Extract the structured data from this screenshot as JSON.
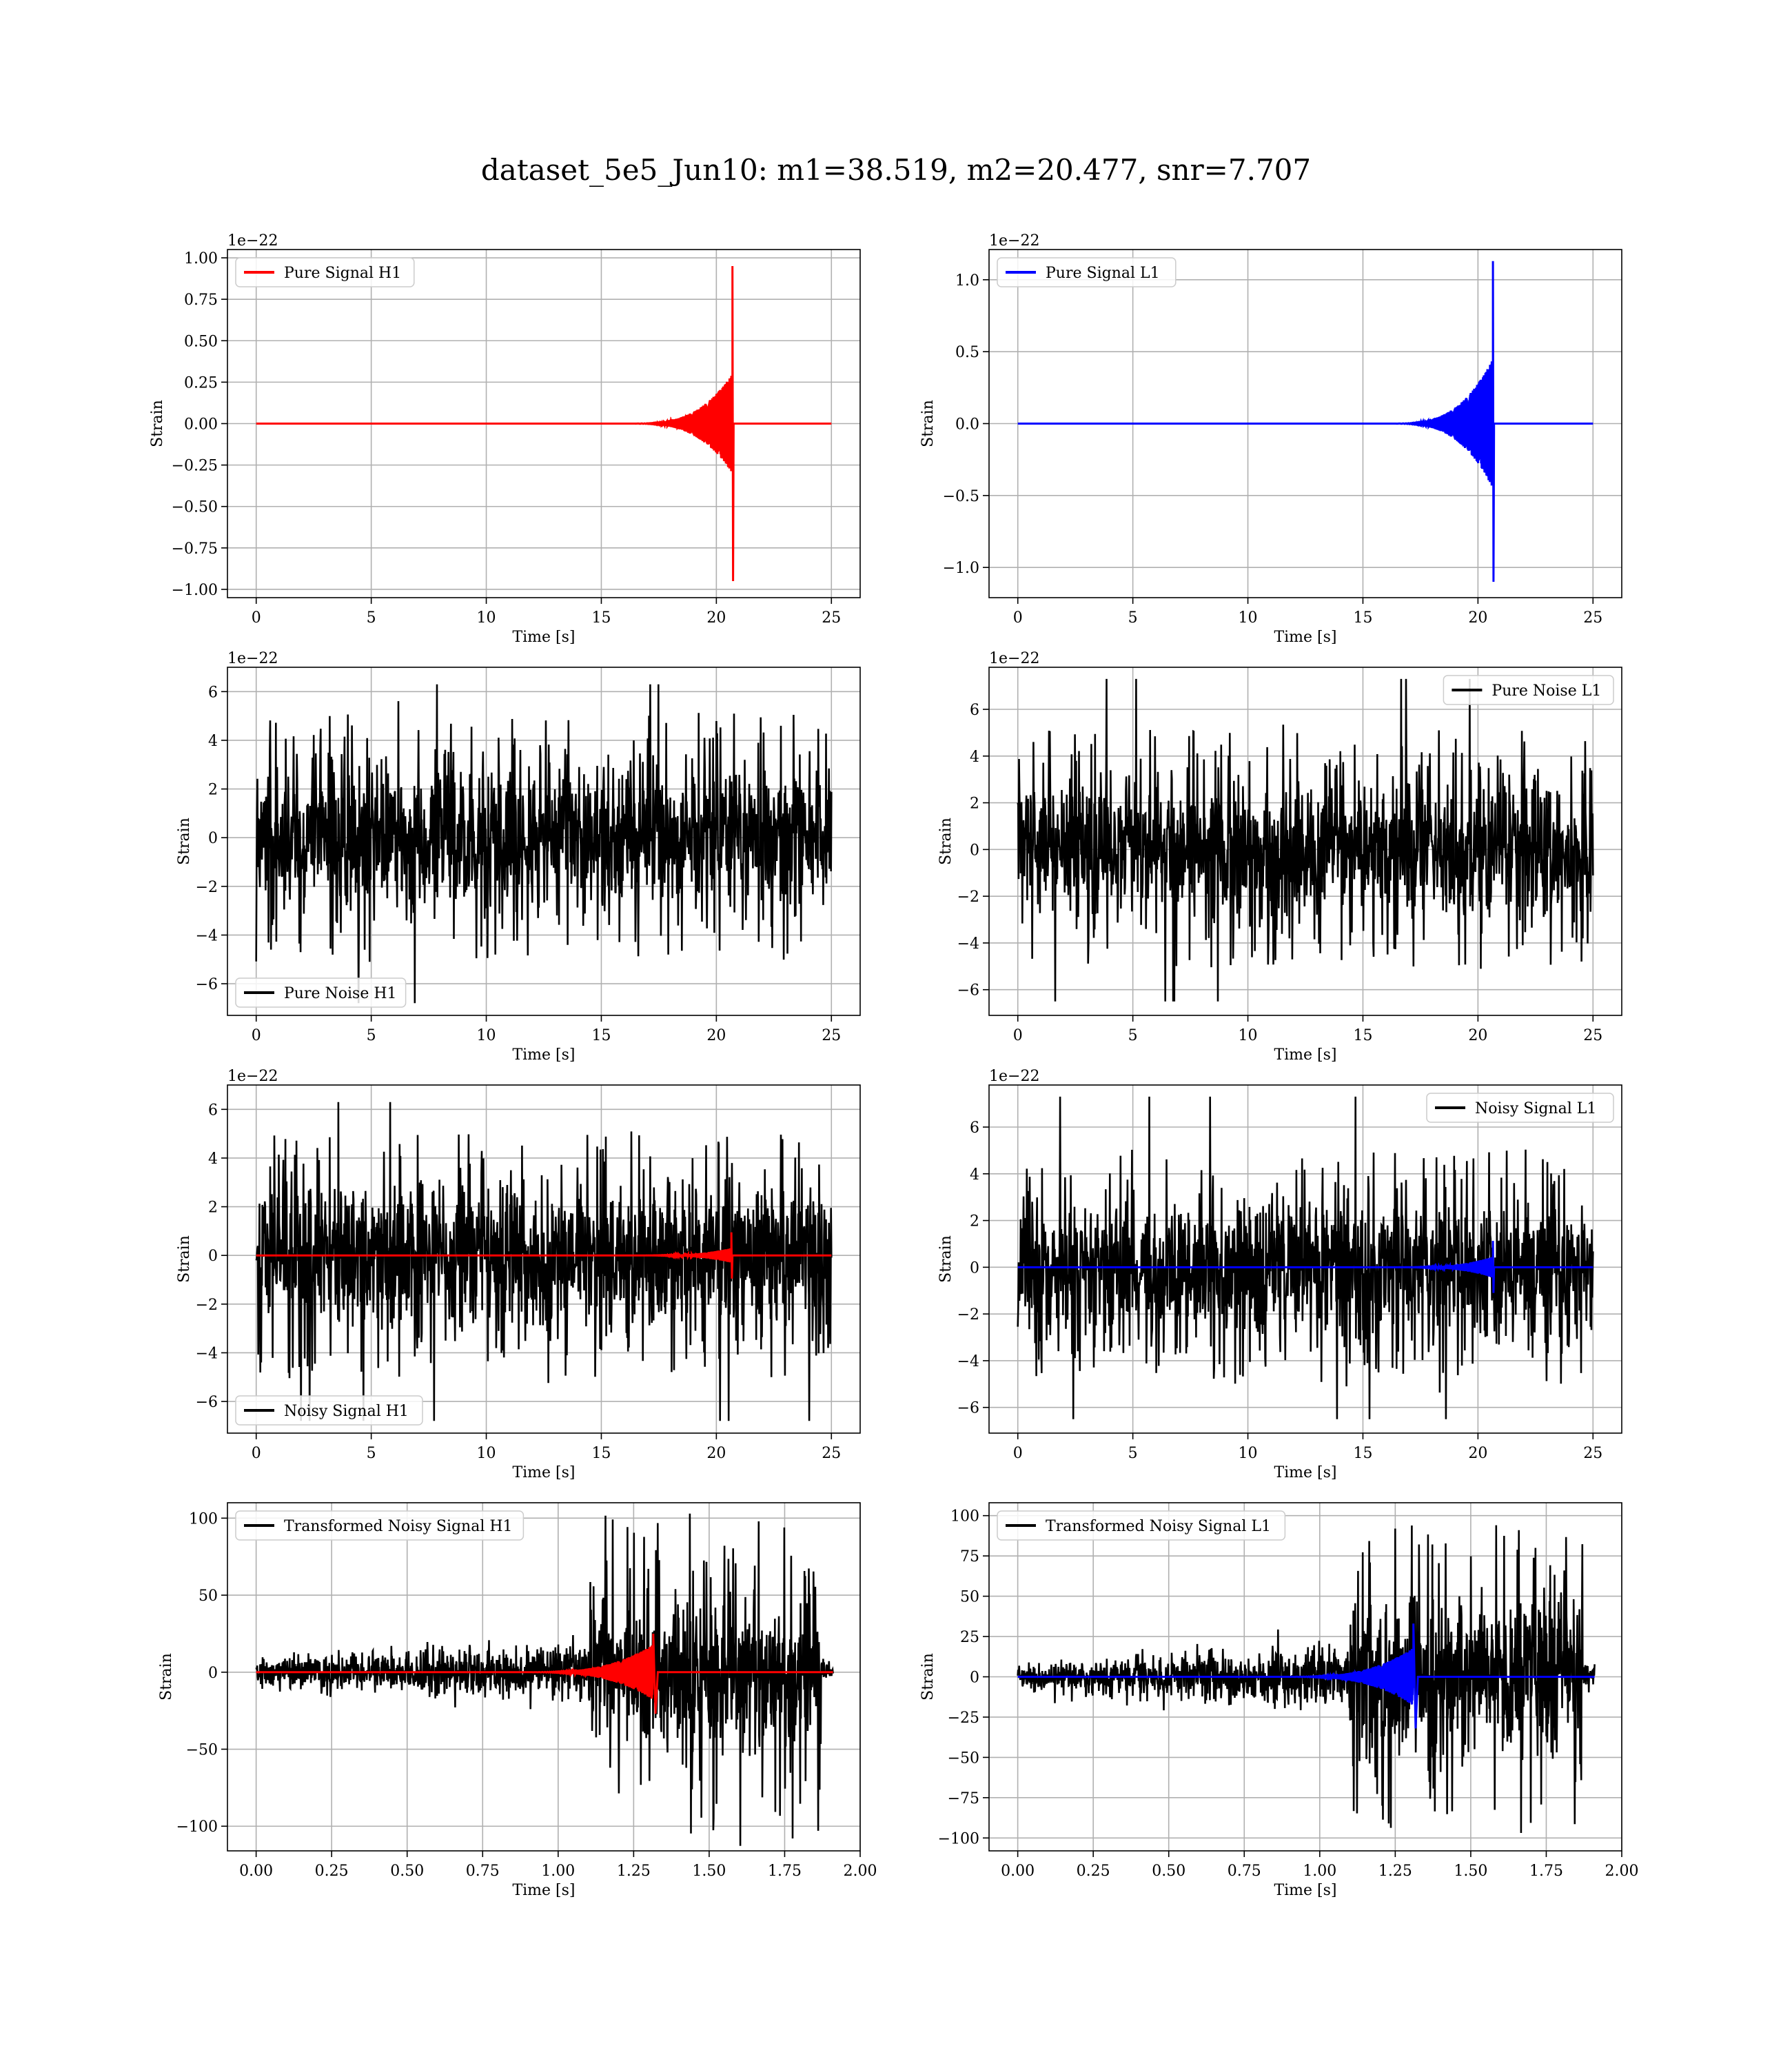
{
  "title": "dataset_5e5_Jun10: m1=38.519, m2=20.477, snr=7.707",
  "colors": {
    "h1": "#ff0000",
    "l1": "#0000ff",
    "noise": "#000000",
    "grid": "#b0b0b0"
  },
  "chart_data": [
    {
      "type": "line",
      "panel": "pure-signal-h1",
      "title": "",
      "xlabel": "Time [s]",
      "ylabel": "Strain",
      "offset_text": "1e−22",
      "xlim": [
        -1.25,
        26.25
      ],
      "ylim": [
        -1.05,
        1.05
      ],
      "xticks": [
        0,
        5,
        10,
        15,
        20,
        25
      ],
      "xtick_labels": [
        "0",
        "5",
        "10",
        "15",
        "20",
        "25"
      ],
      "yticks": [
        -1.0,
        -0.75,
        -0.5,
        -0.25,
        0.0,
        0.25,
        0.5,
        0.75,
        1.0
      ],
      "ytick_labels": [
        "−1.00",
        "−0.75",
        "−0.50",
        "−0.25",
        "0.00",
        "0.25",
        "0.50",
        "0.75",
        "1.00"
      ],
      "grid": true,
      "legend_loc": "upper-left",
      "series": [
        {
          "name": "Pure Signal H1",
          "color": "#ff0000",
          "kind": "chirp",
          "x_range": [
            0,
            25
          ],
          "merger_t": 20.7,
          "ringdown_end": 20.75,
          "peak_pos": 0.95,
          "peak_neg": -0.95,
          "envelope": 0.3,
          "start_t": 16.0
        }
      ]
    },
    {
      "type": "line",
      "panel": "pure-signal-l1",
      "title": "",
      "xlabel": "Time [s]",
      "ylabel": "Strain",
      "offset_text": "1e−22",
      "xlim": [
        -1.25,
        26.25
      ],
      "ylim": [
        -1.21,
        1.21
      ],
      "xticks": [
        0,
        5,
        10,
        15,
        20,
        25
      ],
      "xtick_labels": [
        "0",
        "5",
        "10",
        "15",
        "20",
        "25"
      ],
      "yticks": [
        -1.0,
        -0.5,
        0.0,
        0.5,
        1.0
      ],
      "ytick_labels": [
        "−1.0",
        "−0.5",
        "0.0",
        "0.5",
        "1.0"
      ],
      "grid": true,
      "legend_loc": "upper-left",
      "series": [
        {
          "name": "Pure Signal L1",
          "color": "#0000ff",
          "kind": "chirp",
          "x_range": [
            0,
            25
          ],
          "merger_t": 20.65,
          "ringdown_end": 20.7,
          "peak_pos": 1.13,
          "peak_neg": -1.1,
          "envelope": 0.45,
          "start_t": 16.0
        }
      ]
    },
    {
      "type": "line",
      "panel": "pure-noise-h1",
      "title": "",
      "xlabel": "Time [s]",
      "ylabel": "Strain",
      "offset_text": "1e−22",
      "xlim": [
        -1.25,
        26.25
      ],
      "ylim": [
        -7.3,
        7.0
      ],
      "xticks": [
        0,
        5,
        10,
        15,
        20,
        25
      ],
      "xtick_labels": [
        "0",
        "5",
        "10",
        "15",
        "20",
        "25"
      ],
      "yticks": [
        -6,
        -4,
        -2,
        0,
        2,
        4,
        6
      ],
      "ytick_labels": [
        "−6",
        "−4",
        "−2",
        "0",
        "2",
        "4",
        "6"
      ],
      "grid": true,
      "legend_loc": "lower-left",
      "series": [
        {
          "name": "Pure Noise H1",
          "color": "#000000",
          "kind": "noise",
          "x_range": [
            0,
            25
          ],
          "band_hi": 3.3,
          "band_lo": -3.3,
          "max": 6.3,
          "min": -6.8
        }
      ]
    },
    {
      "type": "line",
      "panel": "pure-noise-l1",
      "title": "",
      "xlabel": "Time [s]",
      "ylabel": "Strain",
      "offset_text": "1e−22",
      "xlim": [
        -1.25,
        26.25
      ],
      "ylim": [
        -7.1,
        7.8
      ],
      "xticks": [
        0,
        5,
        10,
        15,
        20,
        25
      ],
      "xtick_labels": [
        "0",
        "5",
        "10",
        "15",
        "20",
        "25"
      ],
      "yticks": [
        -6,
        -4,
        -2,
        0,
        2,
        4,
        6
      ],
      "ytick_labels": [
        "−6",
        "−4",
        "−2",
        "0",
        "2",
        "4",
        "6"
      ],
      "grid": true,
      "legend_loc": "upper-right",
      "series": [
        {
          "name": "Pure Noise L1",
          "color": "#000000",
          "kind": "noise",
          "x_range": [
            0,
            25
          ],
          "band_hi": 3.3,
          "band_lo": -3.3,
          "max": 7.3,
          "min": -6.5
        }
      ]
    },
    {
      "type": "line",
      "panel": "noisy-signal-h1",
      "title": "",
      "xlabel": "Time [s]",
      "ylabel": "Strain",
      "offset_text": "1e−22",
      "xlim": [
        -1.25,
        26.25
      ],
      "ylim": [
        -7.3,
        7.0
      ],
      "xticks": [
        0,
        5,
        10,
        15,
        20,
        25
      ],
      "xtick_labels": [
        "0",
        "5",
        "10",
        "15",
        "20",
        "25"
      ],
      "yticks": [
        -6,
        -4,
        -2,
        0,
        2,
        4,
        6
      ],
      "ytick_labels": [
        "−6",
        "−4",
        "−2",
        "0",
        "2",
        "4",
        "6"
      ],
      "grid": true,
      "legend_loc": "lower-left",
      "series": [
        {
          "name": "Noisy Signal H1",
          "color": "#000000",
          "kind": "noise",
          "x_range": [
            0,
            25
          ],
          "band_hi": 3.3,
          "band_lo": -3.3,
          "max": 6.3,
          "min": -6.8
        },
        {
          "name": "",
          "color": "#ff0000",
          "kind": "chirp",
          "x_range": [
            0,
            25
          ],
          "merger_t": 20.65,
          "ringdown_end": 20.7,
          "peak_pos": 0.95,
          "peak_neg": -0.95,
          "envelope": 0.3,
          "start_t": 16.0
        }
      ]
    },
    {
      "type": "line",
      "panel": "noisy-signal-l1",
      "title": "",
      "xlabel": "Time [s]",
      "ylabel": "Strain",
      "offset_text": "1e−22",
      "xlim": [
        -1.25,
        26.25
      ],
      "ylim": [
        -7.1,
        7.8
      ],
      "xticks": [
        0,
        5,
        10,
        15,
        20,
        25
      ],
      "xtick_labels": [
        "0",
        "5",
        "10",
        "15",
        "20",
        "25"
      ],
      "yticks": [
        -6,
        -4,
        -2,
        0,
        2,
        4,
        6
      ],
      "ytick_labels": [
        "−6",
        "−4",
        "−2",
        "0",
        "2",
        "4",
        "6"
      ],
      "grid": true,
      "legend_loc": "upper-right",
      "series": [
        {
          "name": "Noisy Signal L1",
          "color": "#000000",
          "kind": "noise",
          "x_range": [
            0,
            25
          ],
          "band_hi": 3.3,
          "band_lo": -3.3,
          "max": 7.3,
          "min": -6.5
        },
        {
          "name": "",
          "color": "#0000ff",
          "kind": "chirp",
          "x_range": [
            0,
            25
          ],
          "merger_t": 20.65,
          "ringdown_end": 20.7,
          "peak_pos": 1.13,
          "peak_neg": -1.1,
          "envelope": 0.45,
          "start_t": 16.0
        }
      ]
    },
    {
      "type": "line",
      "panel": "transformed-noisy-signal-h1",
      "title": "",
      "xlabel": "Time [s]",
      "ylabel": "Strain",
      "offset_text": "",
      "xlim": [
        -0.095,
        2.0
      ],
      "ylim": [
        -116,
        110
      ],
      "xticks": [
        0.0,
        0.25,
        0.5,
        0.75,
        1.0,
        1.25,
        1.5,
        1.75,
        2.0
      ],
      "xtick_labels": [
        "0.00",
        "0.25",
        "0.50",
        "0.75",
        "1.00",
        "1.25",
        "1.50",
        "1.75",
        "2.00"
      ],
      "yticks": [
        -100,
        -50,
        0,
        50,
        100
      ],
      "ytick_labels": [
        "−100",
        "−50",
        "0",
        "50",
        "100"
      ],
      "grid": true,
      "legend_loc": "upper-left",
      "series": [
        {
          "name": "Transformed Noisy Signal H1",
          "color": "#000000",
          "kind": "transformed",
          "x_range": [
            0.0,
            1.91
          ],
          "quiet_amp": 6,
          "quiet_end": 1.1,
          "loud_end": 1.87,
          "loud_amp": 48,
          "max": 104,
          "min": -114
        },
        {
          "name": "",
          "color": "#ff0000",
          "kind": "chirp",
          "x_range": [
            0.0,
            1.91
          ],
          "merger_t": 1.315,
          "ringdown_end": 1.33,
          "peak_pos": 25,
          "peak_neg": -27,
          "envelope": 18,
          "start_t": 0.85
        }
      ]
    },
    {
      "type": "line",
      "panel": "transformed-noisy-signal-l1",
      "title": "",
      "xlabel": "Time [s]",
      "ylabel": "Strain",
      "offset_text": "",
      "xlim": [
        -0.095,
        2.0
      ],
      "ylim": [
        -108,
        108
      ],
      "xticks": [
        0.0,
        0.25,
        0.5,
        0.75,
        1.0,
        1.25,
        1.5,
        1.75,
        2.0
      ],
      "xtick_labels": [
        "0.00",
        "0.25",
        "0.50",
        "0.75",
        "1.00",
        "1.25",
        "1.50",
        "1.75",
        "2.00"
      ],
      "yticks": [
        -100,
        -75,
        -50,
        -25,
        0,
        25,
        50,
        75,
        100
      ],
      "ytick_labels": [
        "−100",
        "−75",
        "−50",
        "−25",
        "0",
        "25",
        "50",
        "75",
        "100"
      ],
      "grid": true,
      "legend_loc": "upper-left",
      "series": [
        {
          "name": "Transformed Noisy Signal L1",
          "color": "#000000",
          "kind": "transformed",
          "x_range": [
            0.0,
            1.91
          ],
          "quiet_amp": 6,
          "quiet_end": 1.1,
          "loud_end": 1.87,
          "loud_amp": 48,
          "max": 95,
          "min": -100
        },
        {
          "name": "",
          "color": "#0000ff",
          "kind": "chirp",
          "x_range": [
            0.0,
            1.91
          ],
          "merger_t": 1.31,
          "ringdown_end": 1.325,
          "peak_pos": 33,
          "peak_neg": -32,
          "envelope": 18,
          "start_t": 0.85
        }
      ]
    }
  ]
}
